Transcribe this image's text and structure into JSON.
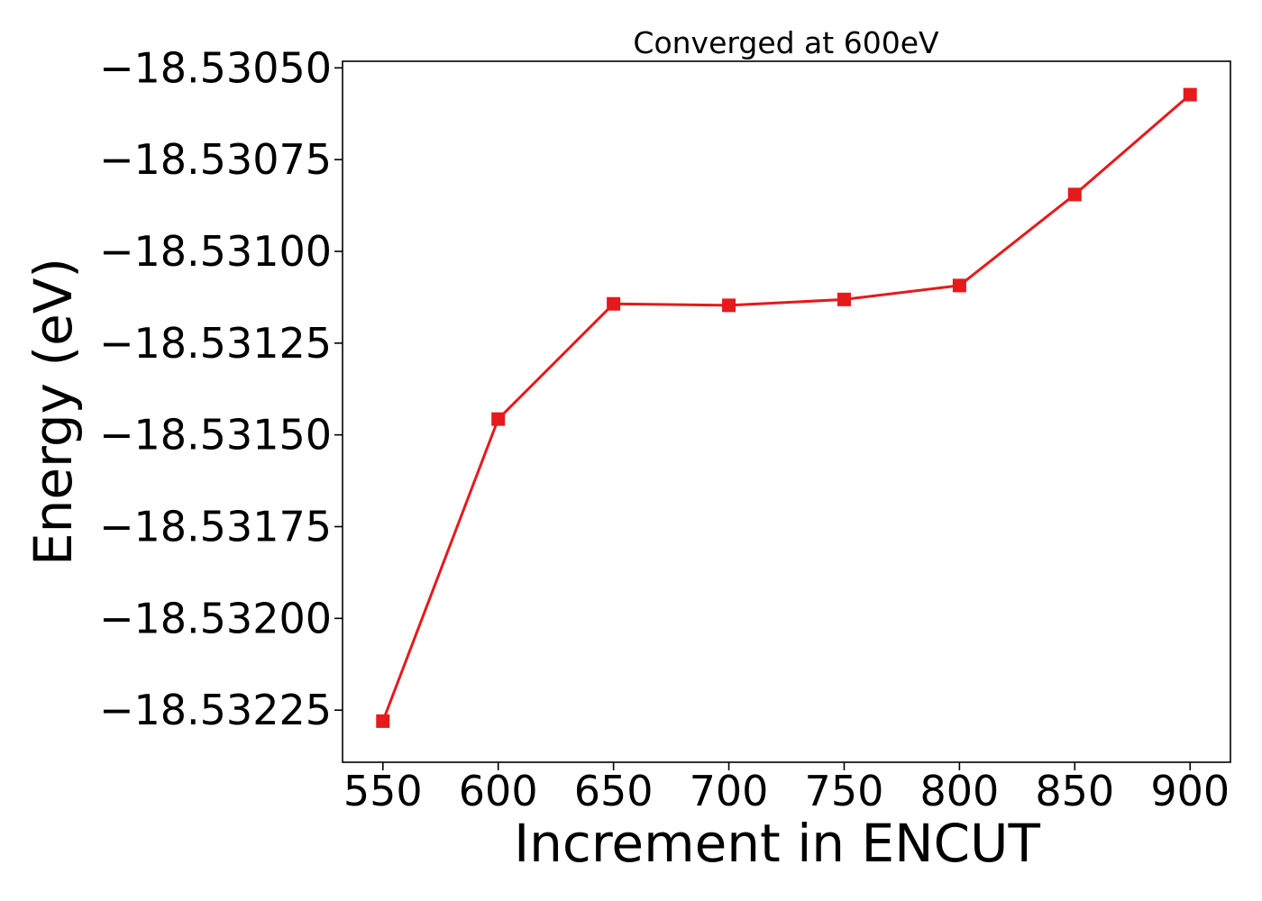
{
  "chart_data": {
    "type": "line",
    "title": "Converged at 600eV",
    "xlabel": "Increment in ENCUT",
    "ylabel": "Energy (eV)",
    "x": [
      550,
      600,
      650,
      700,
      750,
      800,
      850,
      900
    ],
    "series": [
      {
        "values": [
          -18.53228,
          -18.531457,
          -18.531143,
          -18.531147,
          -18.531131,
          -18.531093,
          -18.530845,
          -18.530573
        ],
        "color": "#e41a1c",
        "marker": "square"
      }
    ],
    "xticks": [
      550,
      600,
      650,
      700,
      750,
      800,
      850,
      900
    ],
    "xtick_labels": [
      "550",
      "600",
      "650",
      "700",
      "750",
      "800",
      "850",
      "900"
    ],
    "yticks": [
      -18.5305,
      -18.53075,
      -18.531,
      -18.53125,
      -18.5315,
      -18.53175,
      -18.532,
      -18.53225
    ],
    "ytick_labels": [
      "−18.53050",
      "−18.53075",
      "−18.53100",
      "−18.53125",
      "−18.53150",
      "−18.53175",
      "−18.53200",
      "−18.53225"
    ],
    "xlim": [
      532.5,
      917.5
    ],
    "ylim": [
      -18.532392,
      -18.530482
    ],
    "grid": false,
    "legend": "none"
  }
}
